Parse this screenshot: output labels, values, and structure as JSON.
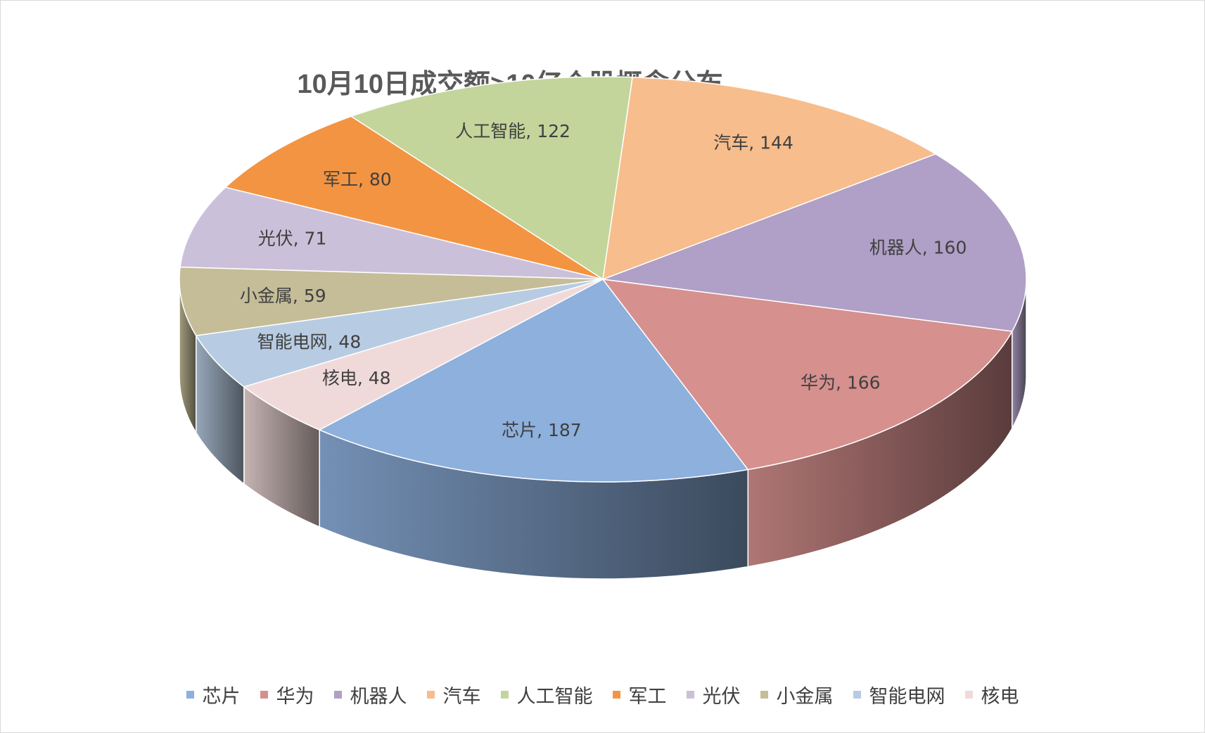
{
  "chart_data": {
    "type": "pie",
    "title": "10月10日成交额>10亿个股概念分布",
    "legend_position": "bottom",
    "slices": [
      {
        "name": "芯片",
        "value": 187,
        "label": "芯片, 187",
        "color": "#8db0dd"
      },
      {
        "name": "华为",
        "value": 166,
        "label": "华为, 166",
        "color": "#d6908e"
      },
      {
        "name": "机器人",
        "value": 160,
        "label": "机器人, 160",
        "color": "#b09fc6"
      },
      {
        "name": "汽车",
        "value": 144,
        "label": "汽车, 144",
        "color": "#f7bd8c"
      },
      {
        "name": "人工智能",
        "value": 122,
        "label": "人工智能, 122",
        "color": "#c3d59b"
      },
      {
        "name": "军工",
        "value": 80,
        "label": "军工, 80",
        "color": "#f39442"
      },
      {
        "name": "光伏",
        "value": 71,
        "label": "光伏, 71",
        "color": "#cbc0d9"
      },
      {
        "name": "小金属",
        "value": 59,
        "label": "小金属, 59",
        "color": "#c4bd97"
      },
      {
        "name": "智能电网",
        "value": 48,
        "label": "智能电网, 48",
        "color": "#b7cce2"
      },
      {
        "name": "核电",
        "value": 48,
        "label": "核电, 48",
        "color": "#f0dad9"
      }
    ]
  }
}
